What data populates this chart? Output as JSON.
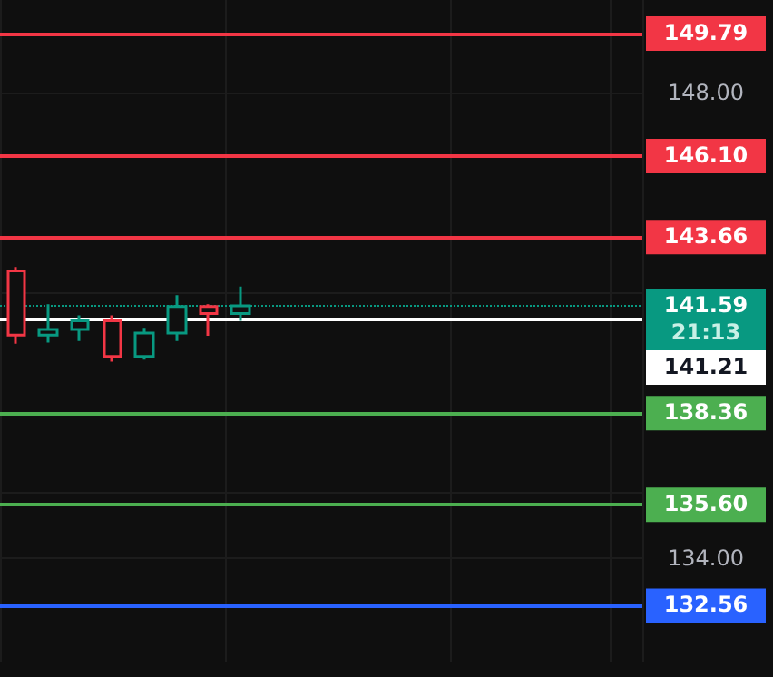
{
  "chart_data": {
    "type": "candlestick",
    "categories": [
      null,
      null,
      null,
      null,
      null,
      null,
      null,
      null,
      null,
      null,
      null,
      null,
      null,
      null,
      null,
      null,
      null,
      null,
      null,
      null
    ],
    "ohlc": [
      [
        142.64,
        142.76,
        140.45,
        140.71
      ],
      [
        140.71,
        141.64,
        140.48,
        140.88
      ],
      [
        140.88,
        141.3,
        140.53,
        141.14
      ],
      [
        141.14,
        141.3,
        139.91,
        140.07
      ],
      [
        140.07,
        140.93,
        139.97,
        140.77
      ],
      [
        140.77,
        141.91,
        140.53,
        141.57
      ],
      [
        141.57,
        141.64,
        140.69,
        141.36
      ],
      [
        141.36,
        142.17,
        141.14,
        141.59
      ],
      null,
      null,
      null,
      null,
      null,
      null,
      null,
      null,
      null,
      null,
      null,
      null
    ],
    "colors": [
      "#f23645",
      "#089981",
      "#089981",
      "#f23645",
      "#089981",
      "#089981",
      "#f23645",
      "#089981",
      null,
      null,
      null,
      null,
      null,
      null,
      null,
      null,
      null,
      null,
      null,
      null
    ],
    "ylim": [
      130.85,
      150.8
    ],
    "yticks": [
      {
        "value": 134,
        "label": "134.00"
      },
      {
        "value": 136,
        "label": null
      },
      {
        "value": 142,
        "label": null
      },
      {
        "value": 148,
        "label": "148.00"
      }
    ],
    "grid": true,
    "ref_lines": [
      {
        "axis": "y",
        "value": 149.79,
        "label": "149.79",
        "color": "#f23645",
        "line_style": "solid"
      },
      {
        "axis": "y",
        "value": 146.1,
        "label": "146.10",
        "color": "#f23645",
        "line_style": "solid"
      },
      {
        "axis": "y",
        "value": 143.66,
        "label": "143.66",
        "color": "#f23645",
        "line_style": "solid"
      },
      {
        "axis": "y",
        "value": 141.59,
        "label": "141.59",
        "color": "#089981",
        "line_style": "dotted"
      },
      {
        "axis": "y",
        "value": 141.21,
        "label": "141.21",
        "color": "#ffffff",
        "line_style": "solid"
      },
      {
        "axis": "y",
        "value": 138.36,
        "label": "138.36",
        "color": "#4caf50",
        "line_style": "solid"
      },
      {
        "axis": "y",
        "value": 135.6,
        "label": "135.60",
        "color": "#4caf50",
        "line_style": "solid"
      },
      {
        "axis": "y",
        "value": 132.56,
        "label": "132.56",
        "color": "#2962ff",
        "line_style": "solid"
      }
    ],
    "annotations": [
      "21:13"
    ]
  }
}
